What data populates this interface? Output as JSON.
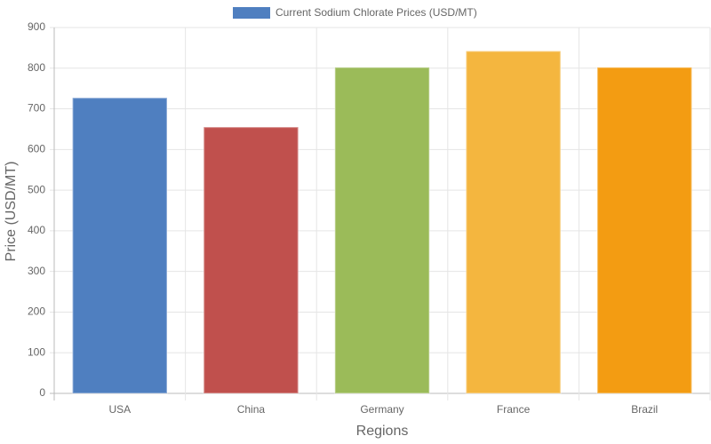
{
  "chart_data": {
    "type": "bar",
    "x_label": "Regions",
    "y_label": "Price (USD/MT)",
    "categories": [
      "USA",
      "China",
      "Germany",
      "France",
      "Brazil"
    ],
    "series": [
      {
        "name": "Current Sodium Chlorate Prices (USD/MT)",
        "colors": [
          "#4f7fc0",
          "#c0504d",
          "#9bbb59",
          "#f4b63f",
          "#f39c12"
        ],
        "values": [
          727,
          655,
          802,
          842,
          802
        ]
      }
    ],
    "ylim": [
      0,
      900
    ],
    "yticks": [
      0,
      100,
      200,
      300,
      400,
      500,
      600,
      700,
      800,
      900
    ],
    "grid": true,
    "legend": "top"
  }
}
